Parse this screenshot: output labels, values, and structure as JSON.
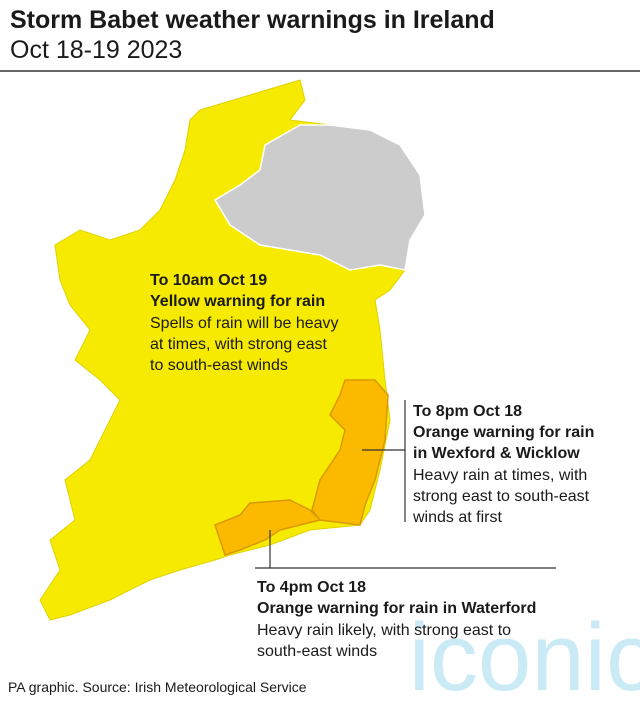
{
  "header": {
    "title": "Storm Babet weather warnings in Ireland",
    "subtitle": "Oct 18-19 2023"
  },
  "annotations": {
    "yellow": {
      "time": "To 10am Oct 19",
      "warning": "Yellow warning for rain",
      "description": [
        "Spells of rain will be heavy",
        "at times, with strong east",
        "to south-east winds"
      ]
    },
    "wexford_wicklow": {
      "time": "To 8pm Oct 18",
      "warning": [
        "Orange warning for rain",
        "in Wexford & Wicklow"
      ],
      "description": [
        "Heavy rain at times, with",
        "strong east to south-east",
        "winds at first"
      ]
    },
    "waterford": {
      "time": "To 4pm Oct 18",
      "warning": "Orange warning for rain in Waterford",
      "description": [
        "Heavy rain likely, with strong east to",
        "south-east winds"
      ]
    }
  },
  "footer": {
    "source": "PA graphic. Source: Irish Meteorological Service"
  },
  "watermark": "iconic"
}
